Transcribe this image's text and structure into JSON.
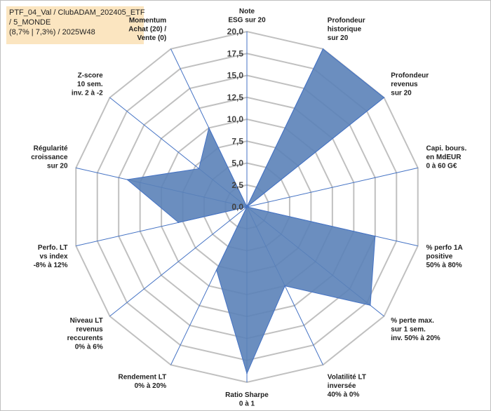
{
  "title_lines": [
    "PTF_04_Val / ClubADAM_202405_ETF",
    " / 5_MONDE",
    "(8,7% | 7,3%) / 2025W48"
  ],
  "colors": {
    "fill": "#5b82b8",
    "stroke": "#4472c4",
    "grid": "#c0c0c0",
    "spoke": "#4472c4",
    "title_bg": "#fbe5c0"
  },
  "chart_data": {
    "type": "radar",
    "grid": true,
    "r_range": [
      0,
      20
    ],
    "tick_labels": [
      "0,0",
      "2,5",
      "5,0",
      "7,5",
      "10,0",
      "12,5",
      "15,0",
      "17,5",
      "20,0"
    ],
    "ticks": [
      0,
      2.5,
      5,
      7.5,
      10,
      12.5,
      15,
      17.5,
      20
    ],
    "axes": [
      {
        "label": [
          "Note",
          "ESG sur 20"
        ]
      },
      {
        "label": [
          "Profondeur",
          "historique",
          "sur 20"
        ]
      },
      {
        "label": [
          "Profondeur",
          "revenus",
          "sur 20"
        ]
      },
      {
        "label": [
          "Capi. bours.",
          "en MdEUR",
          "0 à 60 G€"
        ]
      },
      {
        "label": [
          "% perfo 1A",
          "positive",
          "50% à 80%"
        ]
      },
      {
        "label": [
          "% perte max.",
          "sur 1 sem.",
          "inv. 50% à 20%"
        ]
      },
      {
        "label": [
          "Volatilité LT",
          "inversée",
          "40% à 0%"
        ]
      },
      {
        "label": [
          "Ratio Sharpe",
          "0 à 1"
        ]
      },
      {
        "label": [
          "Rendement LT",
          "0% à 20%"
        ]
      },
      {
        "label": [
          "Niveau LT",
          "revenus",
          "reccurents",
          "0% à 6%"
        ]
      },
      {
        "label": [
          "Perfo. LT",
          "vs index",
          "-8% à 12%"
        ]
      },
      {
        "label": [
          "Régularité",
          "croissance",
          "sur 20"
        ]
      },
      {
        "label": [
          "Z-score",
          "10 sem.",
          "inv. 2 à -2"
        ]
      },
      {
        "label": [
          "Momentum",
          "Achat (20) /",
          "Vente (0)"
        ]
      }
    ],
    "series": [
      {
        "values": [
          0,
          20,
          20,
          0,
          15,
          18,
          10,
          19,
          8,
          0,
          8,
          14,
          7,
          10
        ]
      }
    ]
  }
}
